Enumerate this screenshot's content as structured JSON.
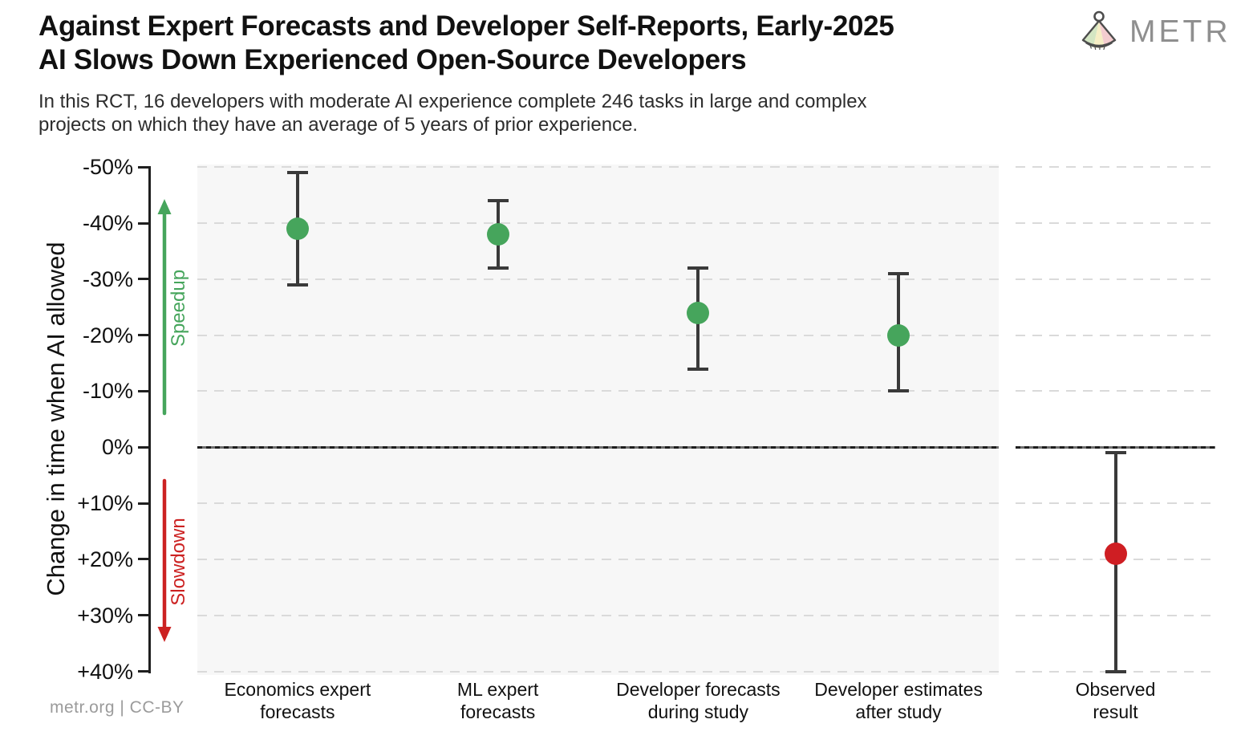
{
  "header": {
    "title_line1": "Against Expert Forecasts and Developer Self-Reports, Early-2025",
    "title_line2": "AI Slows Down Experienced Open-Source Developers",
    "subtitle_line1": "In this RCT, 16 developers with moderate AI experience complete 246 tasks in large and complex",
    "subtitle_line2": "projects on which they have an average of 5 years of prior experience.",
    "logo_text": "METR"
  },
  "footer": {
    "text": "metr.org  |  CC-BY"
  },
  "chart_data": {
    "type": "scatter",
    "subtype": "point-estimates-with-error-bars",
    "title": "Against Expert Forecasts and Developer Self-Reports, Early-2025 AI Slows Down Experienced Open-Source Developers",
    "subtitle": "In this RCT, 16 developers with moderate AI experience complete 246 tasks in large and complex projects on which they have an average of 5 years of prior experience.",
    "ylabel": "Change in time when AI allowed",
    "xlabel": "",
    "y_axis": {
      "unit": "percent",
      "orientation": "negative values (speedup) at top, positive (slowdown) at bottom",
      "ylim": [
        -50,
        40
      ],
      "ticks": [
        {
          "label": "-50%",
          "value": -50
        },
        {
          "label": "-40%",
          "value": -40
        },
        {
          "label": "-30%",
          "value": -30
        },
        {
          "label": "-20%",
          "value": -20
        },
        {
          "label": "-10%",
          "value": -10
        },
        {
          "label": "0%",
          "value": 0
        },
        {
          "label": "+10%",
          "value": 10
        },
        {
          "label": "+20%",
          "value": 20
        },
        {
          "label": "+30%",
          "value": 30
        },
        {
          "label": "+40%",
          "value": 40
        }
      ]
    },
    "annotations": [
      {
        "text": "Speedup",
        "direction": "up",
        "color": "#46a55c"
      },
      {
        "text": "Slowdown",
        "direction": "down",
        "color": "#cc2222"
      }
    ],
    "categories": [
      "Economics expert forecasts",
      "ML expert forecasts",
      "Developer forecasts during study",
      "Developer estimates after study",
      "Observed result"
    ],
    "points": [
      {
        "label_line1": "Economics expert",
        "label_line2": "forecasts",
        "value_pct": -39,
        "ci_pct": [
          -49,
          -29
        ],
        "group": "forecast",
        "panel": "left"
      },
      {
        "label_line1": "ML expert",
        "label_line2": "forecasts",
        "value_pct": -38,
        "ci_pct": [
          -44,
          -32
        ],
        "group": "forecast",
        "panel": "left"
      },
      {
        "label_line1": "Developer forecasts",
        "label_line2": "during study",
        "value_pct": -24,
        "ci_pct": [
          -32,
          -14
        ],
        "group": "forecast",
        "panel": "left"
      },
      {
        "label_line1": "Developer estimates",
        "label_line2": "after study",
        "value_pct": -20,
        "ci_pct": [
          -31,
          -10
        ],
        "group": "forecast",
        "panel": "left"
      },
      {
        "label_line1": "Observed",
        "label_line2": "result",
        "value_pct": 19,
        "ci_pct": [
          1,
          40
        ],
        "group": "observed",
        "panel": "right"
      }
    ],
    "colors": {
      "forecast": "#46a55c",
      "observed": "#cf1e23",
      "errorbar": "#3a3a3a",
      "gridline": "#dadada",
      "panel_background": "#f7f7f7",
      "speedup_accent": "#46a55c",
      "slowdown_accent": "#cc2222"
    },
    "grid": "horizontal dashed lines at every 10%",
    "legend": "none"
  }
}
